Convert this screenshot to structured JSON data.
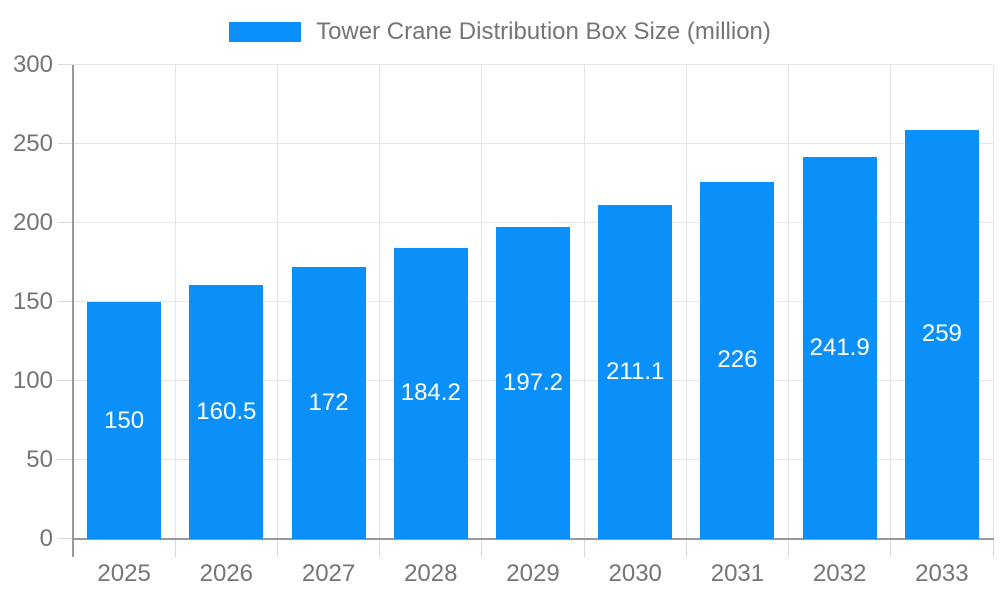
{
  "legend": {
    "label": "Tower Crane Distribution Box Size (million)"
  },
  "chart_data": {
    "type": "bar",
    "title": "Tower Crane Distribution Box Size (million)",
    "categories": [
      "2025",
      "2026",
      "2027",
      "2028",
      "2029",
      "2030",
      "2031",
      "2032",
      "2033"
    ],
    "series": [
      {
        "name": "Tower Crane Distribution Box Size (million)",
        "values": [
          150,
          160.5,
          172,
          184.2,
          197.2,
          211.1,
          226,
          241.9,
          259
        ]
      }
    ],
    "value_labels": [
      "150",
      "160.5",
      "172",
      "184.2",
      "197.2",
      "211.1",
      "226",
      "241.9",
      "259"
    ],
    "xlabel": "",
    "ylabel": "",
    "ylim": [
      0,
      300
    ],
    "y_ticks": [
      0,
      50,
      100,
      150,
      200,
      250,
      300
    ],
    "grid": "on",
    "legend_position": "top",
    "value_label_position": "center-of-bar",
    "colors": {
      "bar": "#0a90f8",
      "axis_text": "#757575",
      "value_text": "#ffffff",
      "grid_line": "#e6e6e6",
      "tick_line": "#d9d9d9",
      "axis_line": "#999999",
      "background": "#ffffff"
    }
  }
}
